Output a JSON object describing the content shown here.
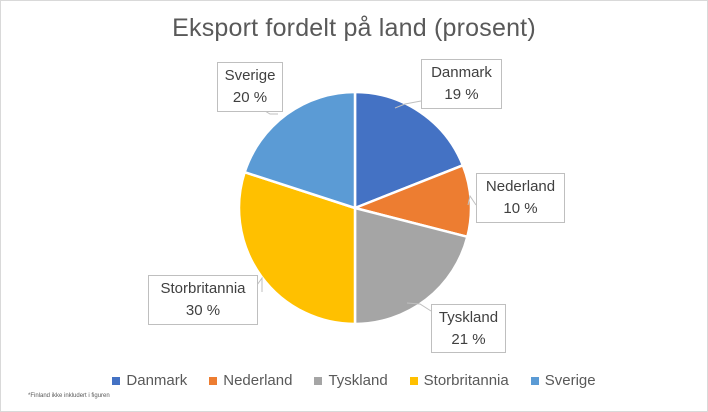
{
  "chart_data": {
    "type": "pie",
    "title": "Eksport fordelt på land (prosent)",
    "categories": [
      "Danmark",
      "Nederland",
      "Tyskland",
      "Storbritannia",
      "Sverige"
    ],
    "values": [
      19,
      10,
      21,
      30,
      20
    ],
    "unit": "%",
    "colors": [
      "#4472C4",
      "#ED7D31",
      "#A5A5A5",
      "#FFC000",
      "#5B9BD5"
    ],
    "data_labels": [
      "Danmark\n19 %",
      "Nederland\n10 %",
      "Tyskland\n21 %",
      "Storbritannia\n30 %",
      "Sverige\n20 %"
    ],
    "start_angle": "12 o'clock, clockwise",
    "legend_position": "bottom",
    "footnote": "*Finland ikke inkludert i figuren"
  },
  "title": "Eksport fordelt på land (prosent)",
  "labels": {
    "danmark": {
      "name": "Danmark",
      "value": "19 %"
    },
    "nederland": {
      "name": "Nederland",
      "value": "10 %"
    },
    "tyskland": {
      "name": "Tyskland",
      "value": "21 %"
    },
    "storbritannia": {
      "name": "Storbritannia",
      "value": "30 %"
    },
    "sverige": {
      "name": "Sverige",
      "value": "20 %"
    }
  },
  "legend": [
    {
      "label": "Danmark",
      "color": "#4472C4"
    },
    {
      "label": "Nederland",
      "color": "#ED7D31"
    },
    {
      "label": "Tyskland",
      "color": "#A5A5A5"
    },
    {
      "label": "Storbritannia",
      "color": "#FFC000"
    },
    {
      "label": "Sverige",
      "color": "#5B9BD5"
    }
  ],
  "footnote": "*Finland ikke inkludert i figuren"
}
